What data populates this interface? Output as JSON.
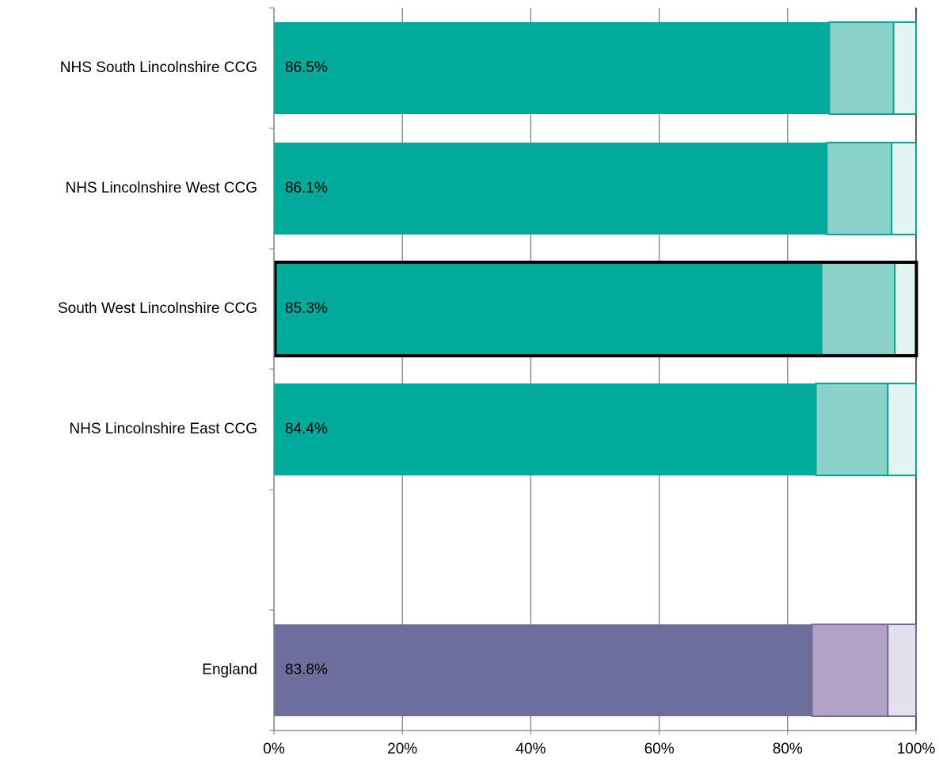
{
  "chart_data": {
    "type": "stacked-barh",
    "categories": [
      "NHS South Lincolnshire CCG",
      "NHS Lincolnshire West CCG",
      "South West Lincolnshire CCG",
      "NHS Lincolnshire East CCG",
      null,
      "England"
    ],
    "series": [
      {
        "values": [
          86.5,
          86.1,
          85.3,
          84.4,
          null,
          83.8
        ],
        "value_labels": [
          "86.5%",
          "86.1%",
          "85.3%",
          "84.4%",
          null,
          "83.8%"
        ],
        "colors": [
          "#00ab9b",
          "#00ab9b",
          "#00ab9b",
          "#00ab9b",
          null,
          "#6e6e9c"
        ]
      },
      {
        "values": [
          10.0,
          10.1,
          11.4,
          11.2,
          null,
          11.8
        ],
        "colors": [
          "#8bd2ca",
          "#8bd2ca",
          "#8bd2ca",
          "#8bd2ca",
          null,
          "#b1a2c6"
        ]
      },
      {
        "values": [
          3.5,
          3.8,
          3.3,
          4.4,
          null,
          4.4
        ],
        "colors": [
          "#e3f3f1",
          "#e3f3f1",
          "#e3f3f1",
          "#e3f3f1",
          null,
          "#e4dfec"
        ]
      }
    ],
    "highlight_index": 2,
    "xlim": [
      0,
      100
    ],
    "xticks": [
      {
        "value": 0,
        "label": "0%"
      },
      {
        "value": 20,
        "label": "20%"
      },
      {
        "value": 40,
        "label": "40%"
      },
      {
        "value": 60,
        "label": "60%"
      },
      {
        "value": 80,
        "label": "80%"
      },
      {
        "value": 100,
        "label": "100%"
      }
    ],
    "grid": true
  }
}
